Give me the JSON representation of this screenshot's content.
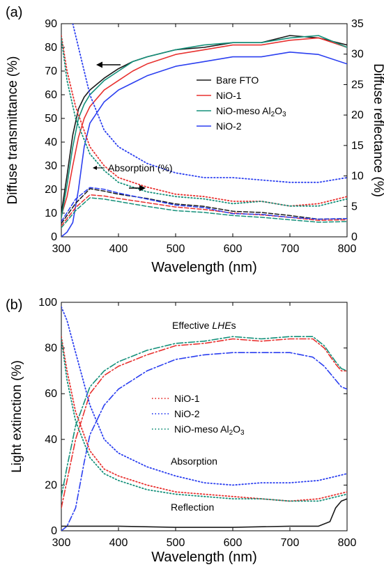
{
  "chart_data": [
    {
      "type": "line",
      "panel_label": "(a)",
      "xlabel": "Wavelength (nm)",
      "ylabel": "Diffuse transmittance (%)",
      "y2label": "Diffuse reflectance (%)",
      "xlim": [
        300,
        800
      ],
      "ylim": [
        0,
        90
      ],
      "y2lim": [
        0,
        35
      ],
      "xticks": [
        300,
        400,
        500,
        600,
        700,
        800
      ],
      "yticks": [
        0,
        10,
        20,
        30,
        40,
        50,
        60,
        70,
        80,
        90
      ],
      "y2ticks": [
        0,
        5,
        10,
        15,
        20,
        25,
        30,
        35
      ],
      "grid": false,
      "legend": {
        "position": "center-right",
        "entries": [
          "Bare FTO",
          "NiO-1",
          "NiO-meso Al2O3",
          "NiO-2"
        ],
        "display": [
          {
            "text": "Bare FTO"
          },
          {
            "text": "NiO-1"
          },
          {
            "text": "NiO-meso Al",
            "sub": "2",
            "text2": "O",
            "sub2": "3"
          },
          {
            "text": "NiO-2"
          }
        ]
      },
      "annotations": [
        "Absorption (%)"
      ],
      "colors": {
        "Bare FTO": "#1a1a1a",
        "NiO-1": "#e8312f",
        "NiO-meso Al2O3": "#14907a",
        "NiO-2": "#2b3ff0"
      },
      "series": [
        {
          "name": "Bare FTO",
          "kind": "transmittance",
          "axis": "left",
          "style": "solid",
          "x": [
            300,
            310,
            320,
            330,
            340,
            350,
            375,
            400,
            425,
            450,
            500,
            550,
            600,
            650,
            700,
            750,
            800
          ],
          "y": [
            10,
            26,
            43,
            54,
            59,
            62,
            67,
            71,
            74,
            76,
            79,
            80,
            82,
            82,
            85,
            84,
            81
          ]
        },
        {
          "name": "NiO-1",
          "kind": "transmittance",
          "axis": "left",
          "style": "solid",
          "x": [
            300,
            310,
            320,
            330,
            340,
            350,
            375,
            400,
            425,
            450,
            500,
            550,
            600,
            650,
            700,
            750,
            800
          ],
          "y": [
            9,
            17,
            30,
            42,
            50,
            55,
            62,
            66,
            70,
            73,
            77,
            79,
            81,
            81,
            83,
            84,
            80
          ]
        },
        {
          "name": "NiO-meso Al2O3",
          "kind": "transmittance",
          "axis": "left",
          "style": "solid",
          "x": [
            300,
            310,
            320,
            330,
            340,
            350,
            375,
            400,
            425,
            450,
            500,
            550,
            600,
            650,
            700,
            750,
            800
          ],
          "y": [
            8,
            22,
            38,
            50,
            56,
            60,
            66,
            70,
            74,
            76,
            79,
            81,
            82,
            82,
            84,
            85,
            80
          ]
        },
        {
          "name": "NiO-2",
          "kind": "transmittance",
          "axis": "left",
          "style": "solid",
          "x": [
            300,
            310,
            320,
            330,
            340,
            350,
            375,
            400,
            425,
            450,
            500,
            550,
            600,
            650,
            700,
            750,
            800
          ],
          "y": [
            0,
            2,
            6,
            20,
            38,
            48,
            57,
            62,
            65,
            68,
            72,
            74,
            76,
            76,
            78,
            77,
            73
          ]
        },
        {
          "name": "Bare FTO",
          "kind": "reflectance",
          "axis": "right",
          "style": "dashed",
          "x": [
            300,
            325,
            350,
            375,
            400,
            450,
            500,
            550,
            600,
            650,
            700,
            750,
            800
          ],
          "y": [
            2.2,
            5.5,
            7.9,
            7.5,
            7.0,
            6.3,
            5.4,
            5.0,
            4.2,
            4.0,
            3.5,
            2.9,
            3.0
          ]
        },
        {
          "name": "NiO-1",
          "kind": "reflectance",
          "axis": "right",
          "style": "dashed",
          "x": [
            300,
            325,
            350,
            375,
            400,
            450,
            500,
            550,
            600,
            650,
            700,
            750,
            800
          ],
          "y": [
            1.8,
            4.8,
            6.9,
            6.7,
            6.3,
            5.6,
            4.9,
            4.5,
            3.9,
            3.6,
            3.2,
            2.7,
            2.8
          ]
        },
        {
          "name": "NiO-meso Al2O3",
          "kind": "reflectance",
          "axis": "right",
          "style": "dashed",
          "x": [
            300,
            325,
            350,
            375,
            400,
            450,
            500,
            550,
            600,
            650,
            700,
            750,
            800
          ],
          "y": [
            1.5,
            4.3,
            6.4,
            6.2,
            5.8,
            5.0,
            4.3,
            4.0,
            3.5,
            3.2,
            2.8,
            2.4,
            2.5
          ]
        },
        {
          "name": "NiO-2",
          "kind": "reflectance",
          "axis": "right",
          "style": "dashed",
          "x": [
            300,
            325,
            350,
            375,
            400,
            450,
            500,
            550,
            600,
            650,
            700,
            750,
            800
          ],
          "y": [
            2.5,
            6.2,
            8.1,
            7.8,
            7.2,
            6.2,
            5.2,
            4.8,
            3.8,
            3.7,
            3.2,
            2.9,
            3.0
          ]
        },
        {
          "name": "NiO-1",
          "kind": "absorption",
          "axis": "left",
          "style": "dotted",
          "x": [
            300,
            310,
            325,
            350,
            375,
            400,
            450,
            500,
            550,
            600,
            650,
            700,
            750,
            800
          ],
          "y": [
            85,
            70,
            55,
            38,
            30,
            25,
            21,
            18,
            17,
            15,
            15,
            13,
            14,
            17
          ]
        },
        {
          "name": "NiO-meso Al2O3",
          "kind": "absorption",
          "axis": "left",
          "style": "dotted",
          "x": [
            300,
            310,
            325,
            350,
            375,
            400,
            450,
            500,
            550,
            600,
            650,
            700,
            750,
            800
          ],
          "y": [
            84,
            66,
            50,
            35,
            28,
            23,
            19,
            17,
            16,
            14,
            15,
            13,
            13,
            16
          ]
        },
        {
          "name": "NiO-2",
          "kind": "absorption",
          "axis": "left",
          "style": "dotted",
          "x": [
            320,
            330,
            350,
            375,
            400,
            450,
            500,
            550,
            600,
            650,
            700,
            750,
            800
          ],
          "y": [
            90,
            80,
            60,
            45,
            38,
            31,
            27,
            25,
            25,
            24,
            23,
            23,
            25
          ]
        }
      ]
    },
    {
      "type": "line",
      "panel_label": "(b)",
      "xlabel": "Wavelength (nm)",
      "ylabel": "Light extinction (%)",
      "xlim": [
        300,
        800
      ],
      "ylim": [
        0,
        100
      ],
      "xticks": [
        300,
        400,
        500,
        600,
        700,
        800
      ],
      "yticks": [
        0,
        20,
        40,
        60,
        80,
        100
      ],
      "grid": false,
      "legend": {
        "position": "center",
        "entries": [
          "NiO-1",
          "NiO-2",
          "NiO-meso Al2O3"
        ],
        "display": [
          {
            "text": "NiO-1"
          },
          {
            "text": "NiO-2"
          },
          {
            "text": "NiO-meso Al",
            "sub": "2",
            "text2": "O",
            "sub2": "3"
          }
        ]
      },
      "annotations": [
        {
          "text": "Effective ",
          "italic": "LHE",
          "text2": "s"
        },
        {
          "text": "Absorption"
        },
        {
          "text": "Reflection"
        }
      ],
      "colors": {
        "NiO-1": "#e8312f",
        "NiO-2": "#2b3ff0",
        "NiO-meso Al2O3": "#14907a",
        "Reflection": "#1a1a1a"
      },
      "series": [
        {
          "name": "NiO-1",
          "kind": "effective LHE",
          "style": "dashdot",
          "x": [
            300,
            310,
            325,
            350,
            375,
            400,
            450,
            500,
            550,
            600,
            650,
            700,
            740,
            760,
            780,
            790,
            800
          ],
          "y": [
            10,
            22,
            40,
            60,
            68,
            72,
            77,
            81,
            82,
            84,
            83,
            84,
            84,
            80,
            73,
            70,
            70
          ]
        },
        {
          "name": "NiO-meso Al2O3",
          "kind": "effective LHE",
          "style": "dashdot",
          "x": [
            300,
            310,
            325,
            350,
            375,
            400,
            450,
            500,
            550,
            600,
            650,
            700,
            740,
            760,
            780,
            790,
            800
          ],
          "y": [
            15,
            28,
            46,
            63,
            70,
            74,
            79,
            82,
            83,
            85,
            84,
            85,
            85,
            81,
            74,
            71,
            70
          ]
        },
        {
          "name": "NiO-2",
          "kind": "effective LHE",
          "style": "dashdot",
          "x": [
            300,
            310,
            325,
            340,
            350,
            375,
            400,
            450,
            500,
            550,
            600,
            650,
            700,
            740,
            760,
            780,
            790,
            800
          ],
          "y": [
            0,
            2,
            10,
            30,
            42,
            55,
            62,
            70,
            75,
            77,
            78,
            78,
            78,
            76,
            72,
            66,
            63,
            62
          ]
        },
        {
          "name": "NiO-1",
          "kind": "absorption",
          "style": "dotted",
          "x": [
            300,
            310,
            325,
            350,
            375,
            400,
            450,
            500,
            550,
            600,
            650,
            700,
            750,
            800
          ],
          "y": [
            85,
            70,
            52,
            35,
            27,
            24,
            20,
            17,
            16,
            15,
            14,
            13,
            14,
            17
          ]
        },
        {
          "name": "NiO-meso Al2O3",
          "kind": "absorption",
          "style": "dotted",
          "x": [
            300,
            310,
            325,
            350,
            375,
            400,
            450,
            500,
            550,
            600,
            650,
            700,
            750,
            800
          ],
          "y": [
            84,
            66,
            48,
            32,
            25,
            22,
            18,
            16,
            15,
            14,
            14,
            13,
            13,
            16
          ]
        },
        {
          "name": "NiO-2",
          "kind": "absorption",
          "style": "dotted",
          "x": [
            300,
            310,
            325,
            350,
            375,
            400,
            450,
            500,
            550,
            600,
            650,
            700,
            750,
            800
          ],
          "y": [
            98,
            92,
            78,
            55,
            40,
            34,
            28,
            24,
            21,
            20,
            21,
            21,
            22,
            25
          ]
        },
        {
          "name": "Reflection",
          "kind": "reflection",
          "style": "solid",
          "x": [
            300,
            320,
            350,
            400,
            500,
            600,
            700,
            750,
            770,
            780,
            790,
            800
          ],
          "y": [
            2,
            2,
            2,
            2,
            1.5,
            1.5,
            2,
            2,
            4,
            10,
            13,
            14
          ]
        }
      ]
    }
  ]
}
